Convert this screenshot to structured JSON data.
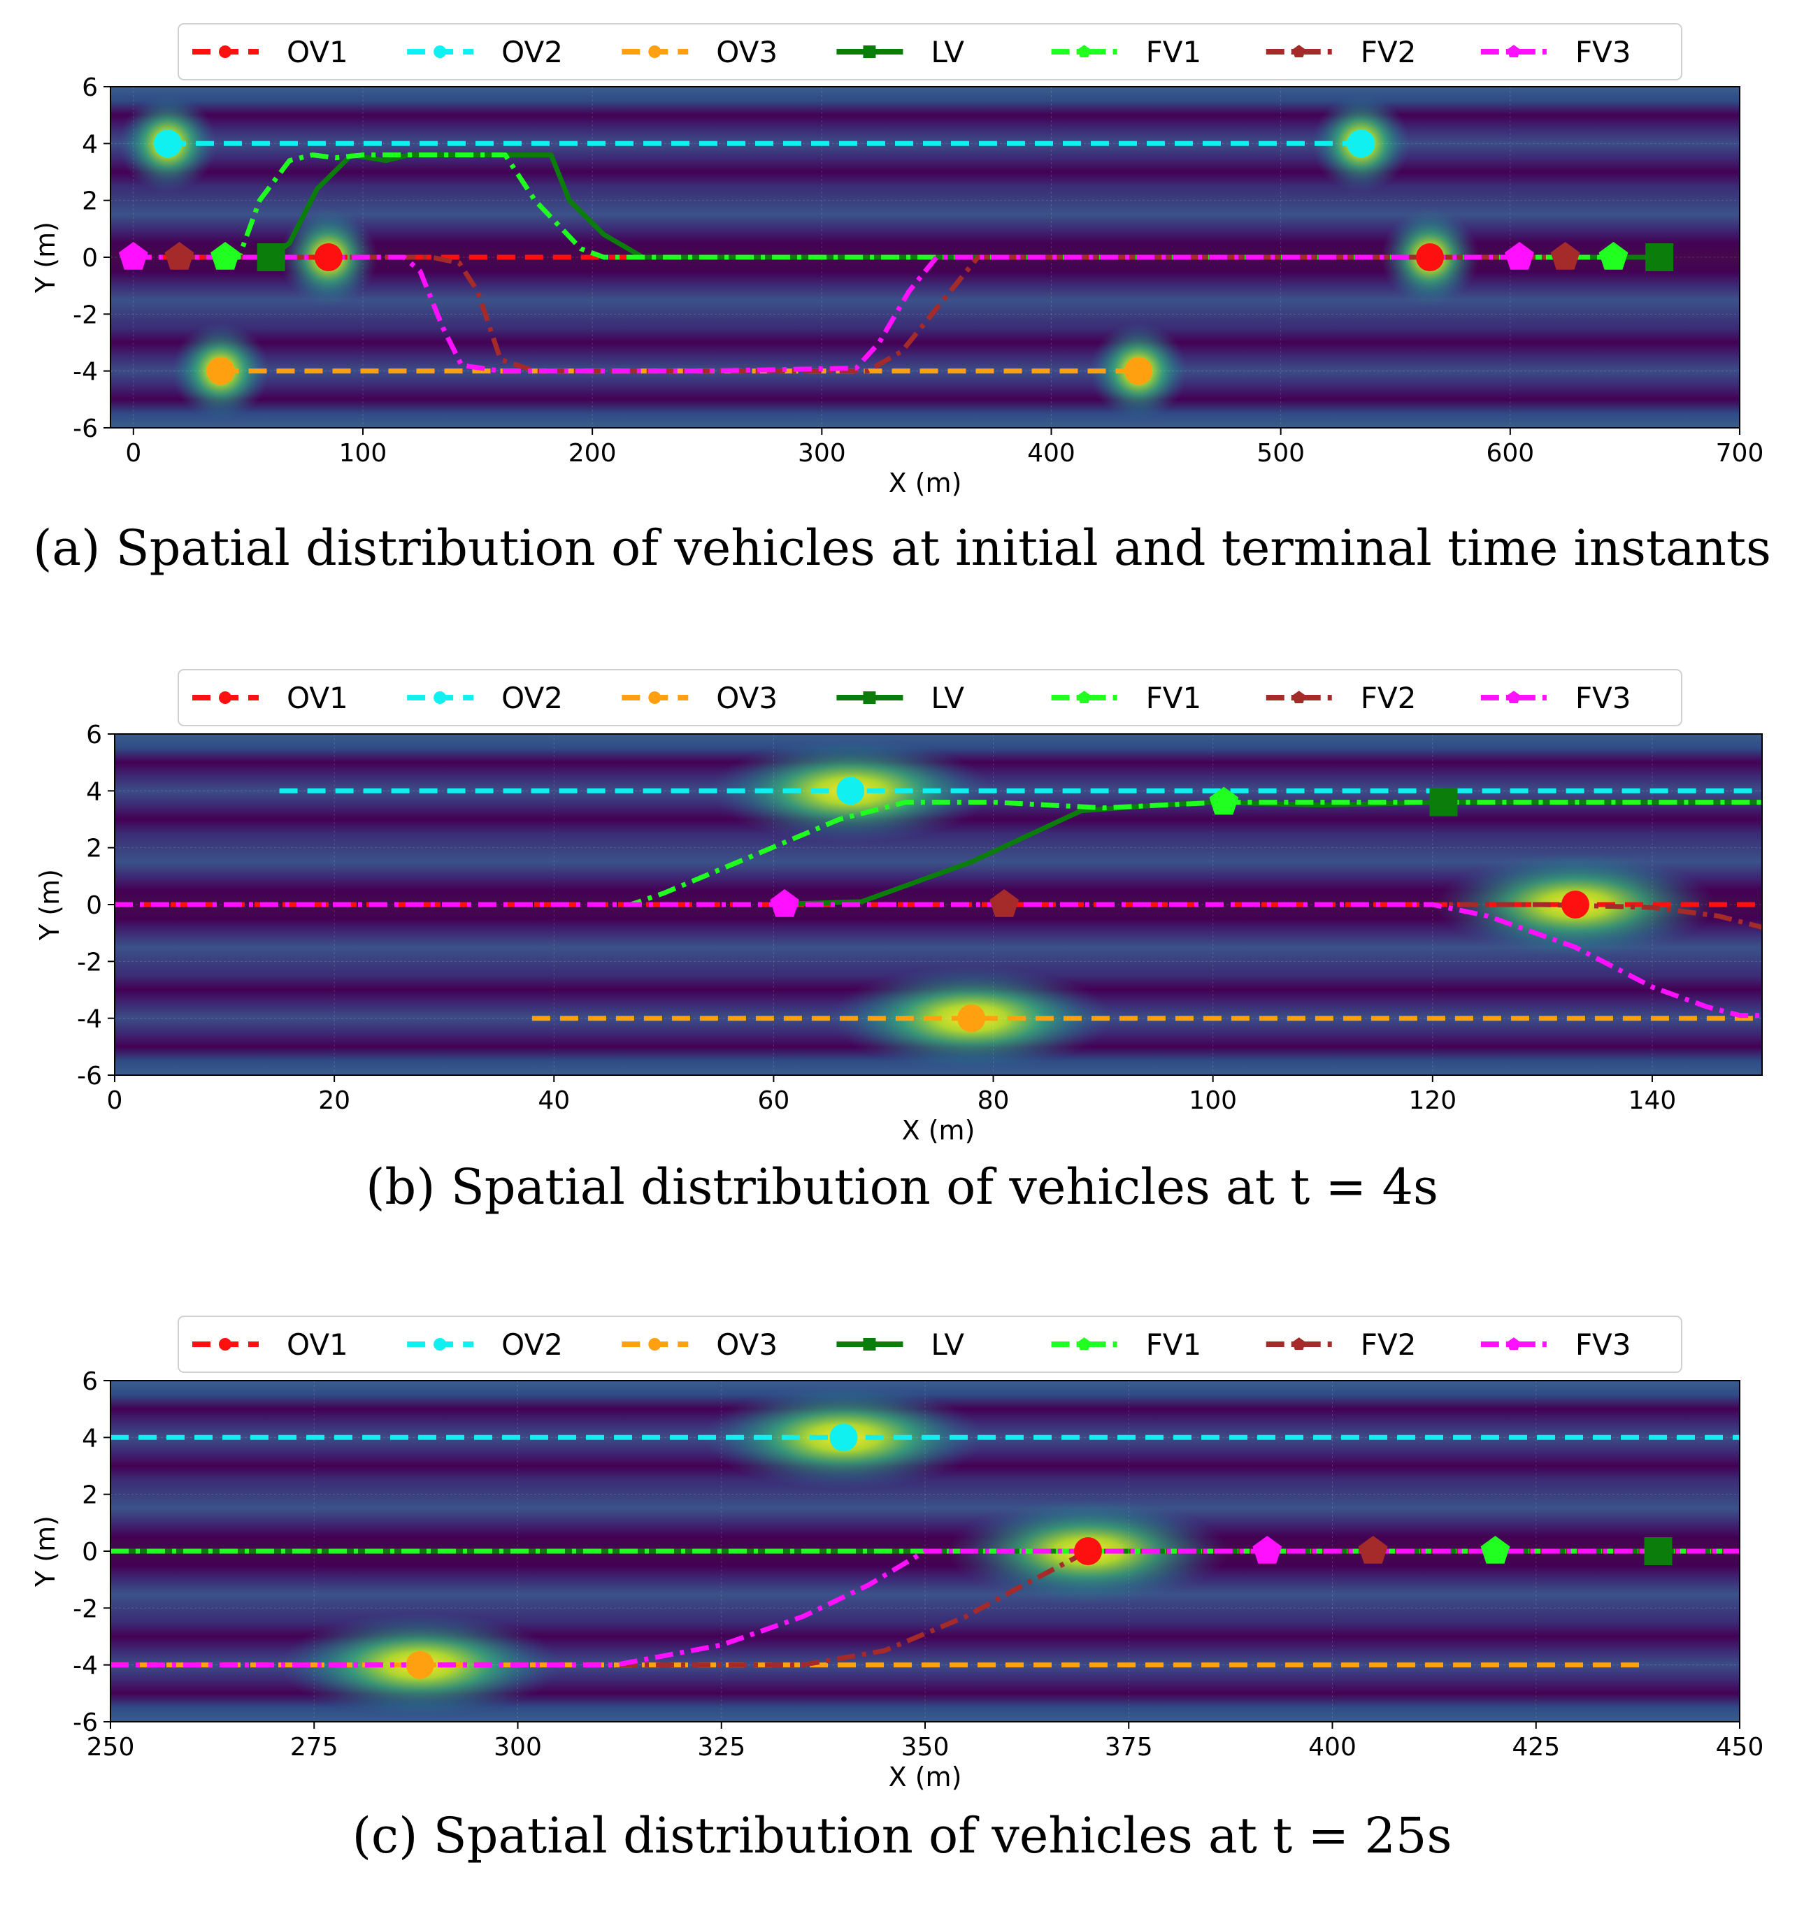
{
  "legend_items": [
    {
      "key": "OV1",
      "label": "OV1",
      "color": "#ff1010",
      "dash": "dashed",
      "marker": "circle"
    },
    {
      "key": "OV2",
      "label": "OV2",
      "color": "#10f0f0",
      "dash": "dashed",
      "marker": "circle"
    },
    {
      "key": "OV3",
      "label": "OV3",
      "color": "#ffa010",
      "dash": "dashed",
      "marker": "circle"
    },
    {
      "key": "LV",
      "label": "LV",
      "color": "#0a7d0a",
      "dash": "solid",
      "marker": "square"
    },
    {
      "key": "FV1",
      "label": "FV1",
      "color": "#20ff20",
      "dash": "dashdot",
      "marker": "pentagon"
    },
    {
      "key": "FV2",
      "label": "FV2",
      "color": "#a52a2a",
      "dash": "dashdot",
      "marker": "pentagon"
    },
    {
      "key": "FV3",
      "label": "FV3",
      "color": "#ff10ff",
      "dash": "dashdot",
      "marker": "pentagon"
    }
  ],
  "chart_data": [
    {
      "id": "a",
      "type": "line",
      "caption": "(a) Spatial distribution of vehicles at initial and terminal time instants",
      "xlabel": "X (m)",
      "ylabel": "Y (m)",
      "xlim": [
        -10,
        700
      ],
      "ylim": [
        -6,
        6
      ],
      "xticks": [
        0,
        100,
        200,
        300,
        400,
        500,
        600,
        700
      ],
      "yticks": [
        -6,
        -4,
        -2,
        0,
        2,
        4,
        6
      ],
      "series": [
        {
          "key": "OV1",
          "x": [
            0,
            565
          ],
          "y": [
            0,
            0
          ],
          "markers": [
            [
              85,
              0
            ],
            [
              565,
              0
            ]
          ]
        },
        {
          "key": "OV2",
          "x": [
            15,
            535
          ],
          "y": [
            4,
            4
          ],
          "markers": [
            [
              15,
              4
            ],
            [
              535,
              4
            ]
          ]
        },
        {
          "key": "OV3",
          "x": [
            38,
            438
          ],
          "y": [
            -4,
            -4
          ],
          "markers": [
            [
              38,
              -4
            ],
            [
              438,
              -4
            ]
          ]
        },
        {
          "key": "LV",
          "x": [
            60,
            68,
            80,
            95,
            110,
            120,
            140,
            182,
            190,
            205,
            222,
            300,
            400,
            500,
            600,
            665
          ],
          "y": [
            0,
            0.5,
            2.4,
            3.6,
            3.4,
            3.6,
            3.6,
            3.6,
            2.0,
            0.8,
            0,
            0,
            0,
            0,
            0,
            0
          ],
          "markers": [
            [
              60,
              0
            ],
            [
              665,
              0
            ]
          ]
        },
        {
          "key": "FV1",
          "x": [
            40,
            46,
            55,
            68,
            78,
            88,
            100,
            130,
            162,
            175,
            195,
            205,
            300,
            400,
            500,
            645
          ],
          "y": [
            0,
            0,
            2.0,
            3.4,
            3.6,
            3.5,
            3.6,
            3.6,
            3.6,
            2.0,
            0.3,
            0,
            0,
            0,
            0,
            0
          ],
          "markers": [
            [
              40,
              0
            ],
            [
              645,
              0
            ]
          ]
        },
        {
          "key": "FV2",
          "x": [
            20,
            130,
            142,
            150,
            160,
            175,
            250,
            320,
            335,
            350,
            360,
            368,
            450,
            550,
            624
          ],
          "y": [
            0,
            0,
            -0.2,
            -1.2,
            -3.6,
            -4,
            -4,
            -4,
            -3.3,
            -1.8,
            -0.8,
            0,
            0,
            0,
            0
          ],
          "markers": [
            [
              20,
              0
            ],
            [
              624,
              0
            ]
          ]
        },
        {
          "key": "FV3",
          "x": [
            0,
            118,
            125,
            135,
            143,
            160,
            250,
            315,
            325,
            338,
            350,
            450,
            550,
            604
          ],
          "y": [
            0,
            0,
            -0.5,
            -2.5,
            -3.8,
            -4,
            -4,
            -3.9,
            -3.0,
            -1.2,
            0,
            0,
            0,
            0
          ],
          "markers": [
            [
              0,
              0
            ],
            [
              604,
              0
            ]
          ]
        }
      ],
      "hotspots": [
        [
          15,
          4
        ],
        [
          535,
          4
        ],
        [
          85,
          0
        ],
        [
          565,
          0
        ],
        [
          38,
          -4
        ],
        [
          438,
          -4
        ]
      ]
    },
    {
      "id": "b",
      "type": "line",
      "caption": "(b) Spatial distribution of vehicles at t = 4s",
      "xlabel": "X (m)",
      "ylabel": "Y (m)",
      "xlim": [
        0,
        150
      ],
      "ylim": [
        -6,
        6
      ],
      "xticks": [
        0,
        20,
        40,
        60,
        80,
        100,
        120,
        140
      ],
      "yticks": [
        -6,
        -4,
        -2,
        0,
        2,
        4,
        6
      ],
      "series": [
        {
          "key": "OV1",
          "x": [
            0,
            150
          ],
          "y": [
            0,
            0
          ],
          "markers": [
            [
              133,
              0
            ]
          ]
        },
        {
          "key": "OV2",
          "x": [
            15,
            150
          ],
          "y": [
            4,
            4
          ],
          "markers": [
            [
              67,
              4
            ]
          ]
        },
        {
          "key": "OV3",
          "x": [
            38,
            150
          ],
          "y": [
            -4,
            -4
          ],
          "markers": [
            [
              78,
              -4
            ]
          ]
        },
        {
          "key": "LV",
          "x": [
            60,
            68,
            78,
            88,
            95,
            100,
            110,
            121,
            150
          ],
          "y": [
            0,
            0.1,
            1.5,
            3.3,
            3.5,
            3.6,
            3.5,
            3.6,
            3.6
          ],
          "markers": [
            [
              121,
              3.6
            ]
          ]
        },
        {
          "key": "FV1",
          "x": [
            0,
            47,
            50,
            58,
            66,
            72,
            80,
            90,
            101,
            150
          ],
          "y": [
            0,
            0,
            0.4,
            1.7,
            3.0,
            3.6,
            3.6,
            3.4,
            3.6,
            3.6
          ],
          "markers": [
            [
              101,
              3.6
            ]
          ]
        },
        {
          "key": "FV2",
          "x": [
            0,
            81,
            130,
            140,
            146,
            150
          ],
          "y": [
            0,
            0,
            0,
            -0.1,
            -0.4,
            -0.8
          ],
          "markers": [
            [
              81,
              0
            ]
          ]
        },
        {
          "key": "FV3",
          "x": [
            0,
            61,
            120,
            125,
            133,
            140,
            145,
            148,
            150
          ],
          "y": [
            0,
            0,
            0,
            -0.4,
            -1.5,
            -2.9,
            -3.6,
            -3.9,
            -3.9
          ],
          "markers": [
            [
              61,
              0
            ]
          ]
        }
      ],
      "hotspots": [
        [
          67,
          4
        ],
        [
          133,
          0
        ],
        [
          78,
          -4
        ]
      ]
    },
    {
      "id": "c",
      "type": "line",
      "caption": "(c) Spatial distribution of vehicles at t = 25s",
      "xlabel": "X (m)",
      "ylabel": "Y (m)",
      "xlim": [
        250,
        450
      ],
      "ylim": [
        -6,
        6
      ],
      "xticks": [
        250,
        275,
        300,
        325,
        350,
        375,
        400,
        425,
        450
      ],
      "yticks": [
        -6,
        -4,
        -2,
        0,
        2,
        4,
        6
      ],
      "series": [
        {
          "key": "OV1",
          "x": [
            250,
            450
          ],
          "y": [
            0,
            0
          ],
          "markers": [
            [
              370,
              0
            ]
          ]
        },
        {
          "key": "OV2",
          "x": [
            250,
            450
          ],
          "y": [
            4,
            4
          ],
          "markers": [
            [
              340,
              4
            ]
          ]
        },
        {
          "key": "OV3",
          "x": [
            250,
            438
          ],
          "y": [
            -4,
            -4
          ],
          "markers": [
            [
              288,
              -4
            ]
          ]
        },
        {
          "key": "LV",
          "x": [
            250,
            350,
            450
          ],
          "y": [
            0,
            0,
            0
          ],
          "markers": [
            [
              440,
              0
            ]
          ]
        },
        {
          "key": "FV1",
          "x": [
            250,
            350,
            450
          ],
          "y": [
            0,
            0,
            0
          ],
          "markers": [
            [
              420,
              0
            ]
          ]
        },
        {
          "key": "FV2",
          "x": [
            250,
            335,
            345,
            355,
            362,
            370,
            405,
            450
          ],
          "y": [
            -4,
            -4,
            -3.5,
            -2.3,
            -1.2,
            0,
            0,
            0
          ],
          "markers": [
            [
              405,
              0
            ]
          ]
        },
        {
          "key": "FV3",
          "x": [
            250,
            312,
            325,
            335,
            343,
            350,
            392,
            450
          ],
          "y": [
            -4,
            -4,
            -3.3,
            -2.3,
            -1.2,
            0,
            0,
            0
          ],
          "markers": [
            [
              392,
              0
            ]
          ]
        }
      ],
      "hotspots": [
        [
          340,
          4
        ],
        [
          370,
          0
        ],
        [
          288,
          -4
        ]
      ]
    }
  ]
}
